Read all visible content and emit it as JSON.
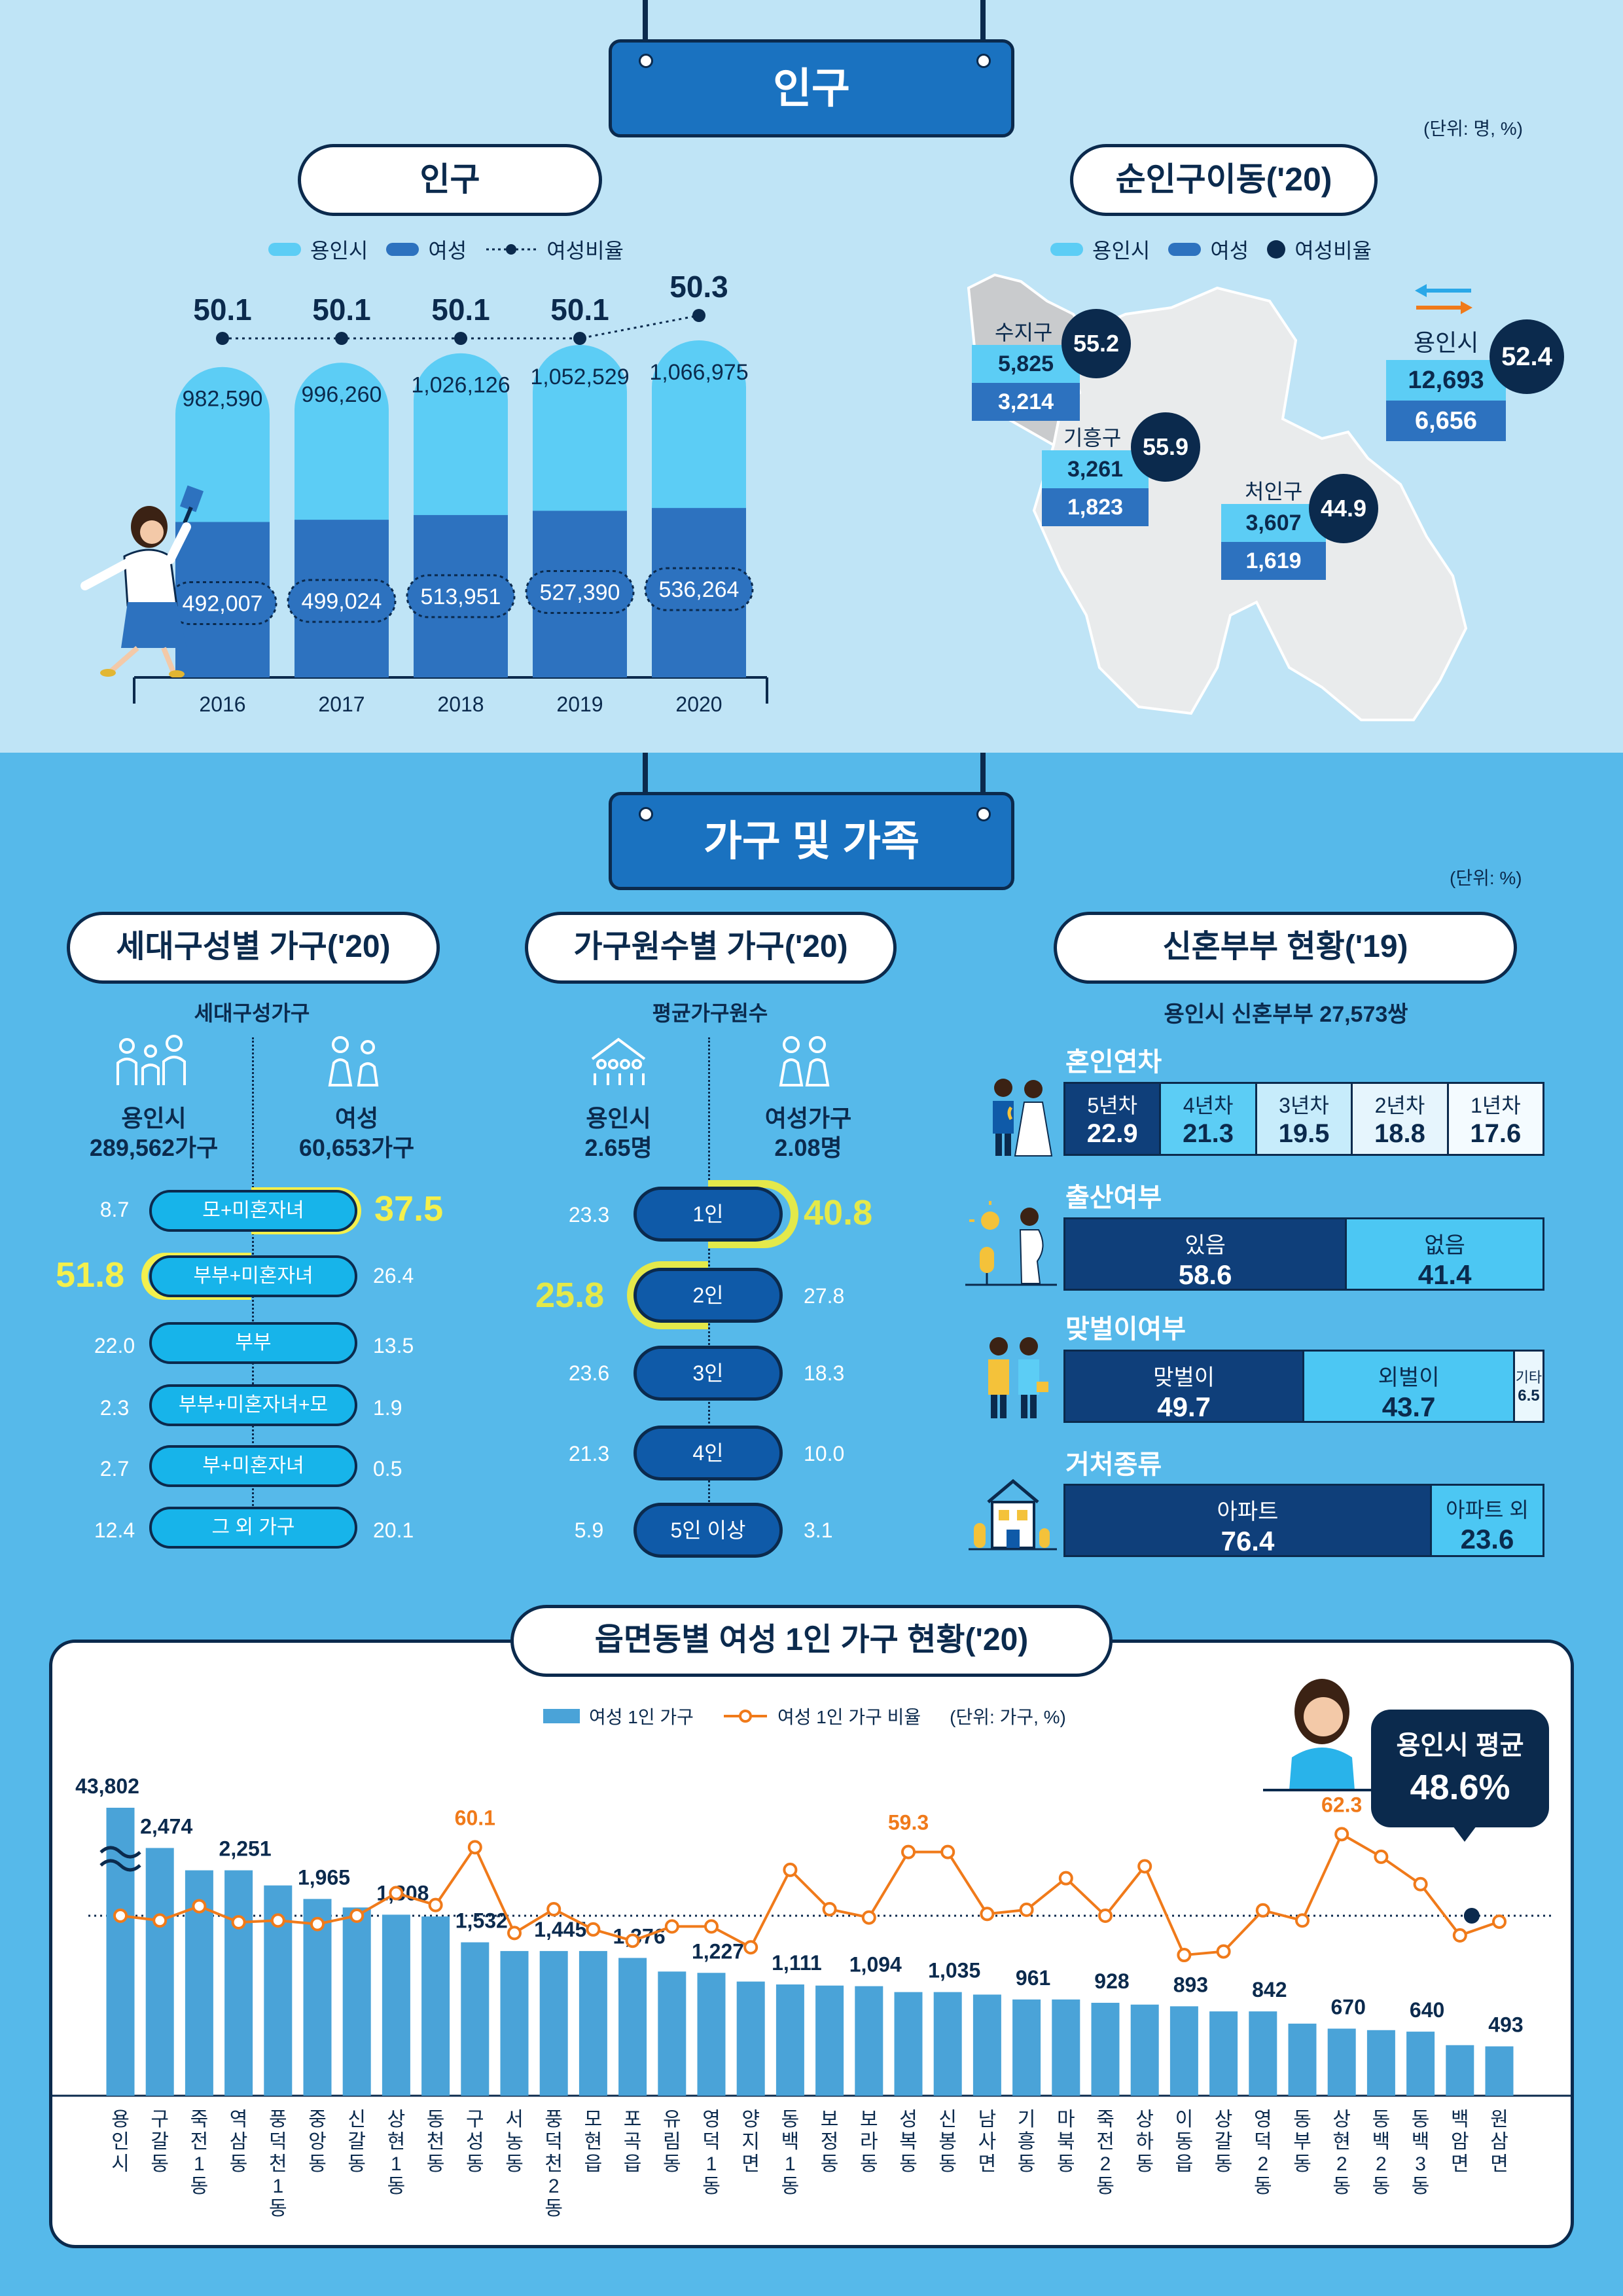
{
  "population_section": {
    "banner": "인구",
    "unit": "(단위: 명, %)",
    "pop_chart": {
      "title": "인구",
      "legend": {
        "a": "용인시",
        "b": "여성",
        "c": "여성비율"
      },
      "years": [
        "2016",
        "2017",
        "2018",
        "2019",
        "2020"
      ],
      "total_labels": [
        "982,590",
        "996,260",
        "1,026,126",
        "1,052,529",
        "1,066,975"
      ],
      "female_labels": [
        "492,007",
        "499,024",
        "513,951",
        "527,390",
        "536,264"
      ],
      "ratio_labels": [
        "50.1",
        "50.1",
        "50.1",
        "50.1",
        "50.3"
      ]
    },
    "migration": {
      "title": "순인구이동('20)",
      "legend": {
        "a": "용인시",
        "b": "여성",
        "c": "여성비율"
      },
      "suji": {
        "name": "수지구",
        "total": "5,825",
        "female": "3,214",
        "ratio": "55.2"
      },
      "giheung": {
        "name": "기흥구",
        "total": "3,261",
        "female": "1,823",
        "ratio": "55.9"
      },
      "cheoin": {
        "name": "처인구",
        "total": "3,607",
        "female": "1,619",
        "ratio": "44.9"
      },
      "yongin": {
        "name": "용인시",
        "total": "12,693",
        "female": "6,656",
        "ratio": "52.4"
      }
    }
  },
  "household_section": {
    "banner": "가구 및 가족",
    "unit": "(단위: %)",
    "generation": {
      "title": "세대구성별 가구('20)",
      "subtitle": "세대구성가구",
      "left_label": "용인시",
      "left_value": "289,562가구",
      "right_label": "여성",
      "right_value": "60,653가구",
      "rows": [
        {
          "label": "모+미혼자녀",
          "left": "8.7",
          "right": "37.5"
        },
        {
          "label": "부부+미혼자녀",
          "left": "51.8",
          "right": "26.4"
        },
        {
          "label": "부부",
          "left": "22.0",
          "right": "13.5"
        },
        {
          "label": "부부+미혼자녀+모",
          "left": "2.3",
          "right": "1.9"
        },
        {
          "label": "부+미혼자녀",
          "left": "2.7",
          "right": "0.5"
        },
        {
          "label": "그 외 가구",
          "left": "12.4",
          "right": "20.1"
        }
      ]
    },
    "members": {
      "title": "가구원수별 가구('20)",
      "subtitle": "평균가구원수",
      "left_label": "용인시",
      "left_value": "2.65명",
      "right_label": "여성가구",
      "right_value": "2.08명",
      "rows": [
        {
          "label": "1인",
          "left": "23.3",
          "right": "40.8"
        },
        {
          "label": "2인",
          "left": "25.8",
          "right": "27.8"
        },
        {
          "label": "3인",
          "left": "23.6",
          "right": "18.3"
        },
        {
          "label": "4인",
          "left": "21.3",
          "right": "10.0"
        },
        {
          "label": "5인 이상",
          "left": "5.9",
          "right": "3.1"
        }
      ]
    },
    "newlywed": {
      "title": "신혼부부 현황('19)",
      "subtitle": "용인시 신혼부부 27,573쌍",
      "years_title": "혼인연차",
      "years": [
        {
          "label": "5년차",
          "value": "22.9"
        },
        {
          "label": "4년차",
          "value": "21.3"
        },
        {
          "label": "3년차",
          "value": "19.5"
        },
        {
          "label": "2년차",
          "value": "18.8"
        },
        {
          "label": "1년차",
          "value": "17.6"
        }
      ],
      "birth_title": "출산여부",
      "birth": [
        {
          "label": "있음",
          "value": "58.6"
        },
        {
          "label": "없음",
          "value": "41.4"
        }
      ],
      "work_title": "맞벌이여부",
      "work": [
        {
          "label": "맞벌이",
          "value": "49.7"
        },
        {
          "label": "외벌이",
          "value": "43.7"
        },
        {
          "label": "기타",
          "value": "6.5"
        }
      ],
      "house_title": "거처종류",
      "house": [
        {
          "label": "아파트",
          "value": "76.4"
        },
        {
          "label": "아파트 외",
          "value": "23.6"
        }
      ]
    }
  },
  "single_section": {
    "title": "읍면동별 여성 1인 가구 현황('20)",
    "legend_bar": "여성 1인 가구",
    "legend_line": "여성 1인 가구 비율",
    "unit": "(단위: 가구, %)",
    "avg_label": "용인시 평균",
    "avg_value": "48.6%"
  },
  "chart_data": [
    {
      "type": "bar",
      "title": "인구",
      "categories": [
        "2016",
        "2017",
        "2018",
        "2019",
        "2020"
      ],
      "series": [
        {
          "name": "용인시",
          "values": [
            982590,
            996260,
            1026126,
            1052529,
            1066975
          ]
        },
        {
          "name": "여성",
          "values": [
            492007,
            499024,
            513951,
            527390,
            536264
          ]
        },
        {
          "name": "여성비율",
          "values": [
            50.1,
            50.1,
            50.1,
            50.1,
            50.3
          ]
        }
      ]
    },
    {
      "type": "bar",
      "title": "읍면동별 여성 1인 가구 현황('20)",
      "categories": [
        "용인시",
        "구갈동",
        "죽전1동",
        "역삼동",
        "풍덕천1동",
        "중앙동",
        "신갈동",
        "상현1동",
        "동천동",
        "구성동",
        "서농동",
        "풍덕천2동",
        "모현읍",
        "포곡읍",
        "유림동",
        "영덕1동",
        "양지면",
        "동백1동",
        "보정동",
        "보라동",
        "성복동",
        "신봉동",
        "남사면",
        "기흥동",
        "마북동",
        "죽전2동",
        "상하동",
        "이동읍",
        "상갈동",
        "영덕2동",
        "동부동",
        "상현2동",
        "동백2동",
        "동백3동",
        "백암면",
        "원삼면"
      ],
      "series": [
        {
          "name": "여성 1인 가구",
          "values": [
            43802,
            2474,
            2251,
            2251,
            2100,
            1965,
            1880,
            1808,
            1790,
            1532,
            1445,
            1445,
            1445,
            1376,
            1240,
            1227,
            1140,
            1111,
            1100,
            1094,
            1035,
            1035,
            1010,
            961,
            961,
            928,
            910,
            893,
            842,
            842,
            720,
            670,
            655,
            640,
            505,
            493
          ]
        },
        {
          "name": "여성 1인 가구 비율",
          "values": [
            48.6,
            47.8,
            50.2,
            47.5,
            47.8,
            47.2,
            48.6,
            52.4,
            50.4,
            60.1,
            45.7,
            49.7,
            46.3,
            44.4,
            46.8,
            46.8,
            43.3,
            56.3,
            49.7,
            48.3,
            59.3,
            59.3,
            48.9,
            49.6,
            54.9,
            48.6,
            56.9,
            42.0,
            42.6,
            49.5,
            47.8,
            62.3,
            58.5,
            53.9,
            45.3,
            47.6
          ]
        }
      ],
      "bar_value_labels": {
        "0": "43,802",
        "1": "2,474",
        "3": "2,251",
        "5": "1,965",
        "7": "1,808",
        "9": "1,532",
        "11": "1,445",
        "13": "1,376",
        "15": "1,227",
        "17": "1,111",
        "19": "1,094",
        "21": "1,035",
        "23": "961",
        "25": "928",
        "27": "893",
        "29": "842",
        "31": "670",
        "33": "640",
        "35": "493"
      },
      "line_value_labels": {
        "9": "60.1",
        "20": "59.3",
        "31": "62.3"
      },
      "average": 48.6
    }
  ]
}
